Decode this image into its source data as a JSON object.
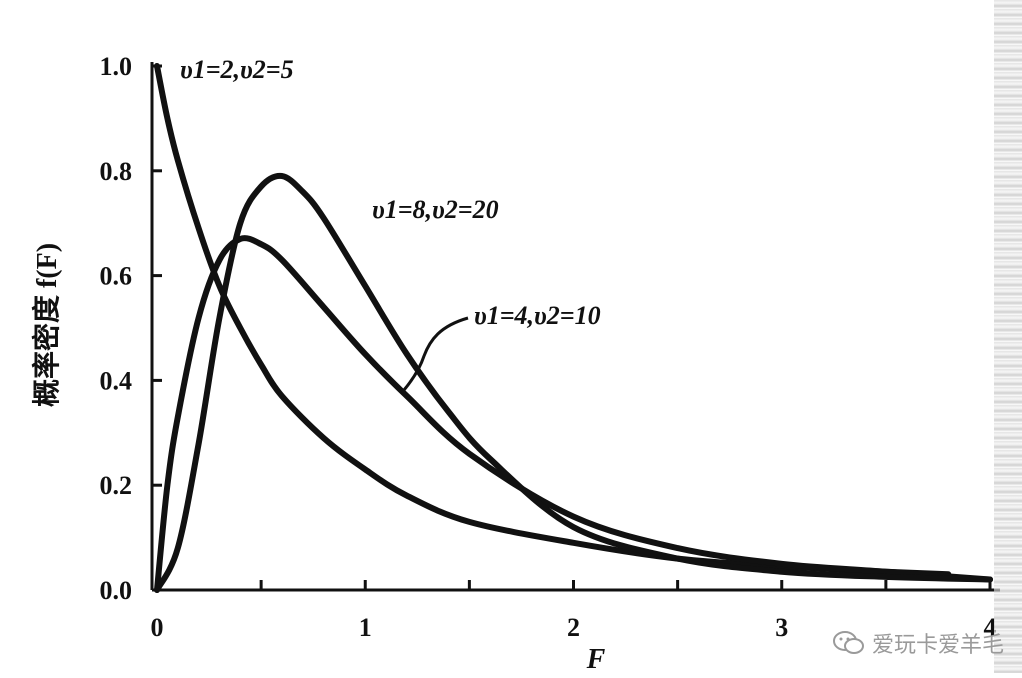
{
  "chart_data": {
    "type": "line",
    "title": "",
    "xlabel": "F",
    "ylabel": "概率密度 f(F)",
    "xlim": [
      0,
      4
    ],
    "ylim": [
      0,
      1.0
    ],
    "x_ticks": [
      "0",
      "1",
      "2",
      "3",
      "4"
    ],
    "y_ticks": [
      "0.0",
      "0.2",
      "0.4",
      "0.6",
      "0.8",
      "1.0"
    ],
    "grid": false,
    "series": [
      {
        "name": "υ1=2,υ2=5",
        "x": [
          0.0,
          0.05,
          0.1,
          0.2,
          0.3,
          0.4,
          0.5,
          0.6,
          0.8,
          1.0,
          1.2,
          1.5,
          2.0,
          2.5,
          3.0,
          3.5,
          3.8
        ],
        "y": [
          1.0,
          0.9,
          0.82,
          0.69,
          0.58,
          0.5,
          0.43,
          0.37,
          0.29,
          0.23,
          0.18,
          0.13,
          0.09,
          0.06,
          0.045,
          0.035,
          0.03
        ]
      },
      {
        "name": "υ1=4,υ2=10",
        "x": [
          0.0,
          0.05,
          0.1,
          0.2,
          0.3,
          0.4,
          0.5,
          0.6,
          0.8,
          1.0,
          1.2,
          1.5,
          2.0,
          2.5,
          3.0,
          3.5,
          4.0
        ],
        "y": [
          0.0,
          0.2,
          0.33,
          0.52,
          0.63,
          0.67,
          0.66,
          0.63,
          0.54,
          0.45,
          0.37,
          0.26,
          0.14,
          0.08,
          0.05,
          0.035,
          0.02
        ]
      },
      {
        "name": "υ1=8,υ2=20",
        "x": [
          0.0,
          0.1,
          0.2,
          0.3,
          0.4,
          0.5,
          0.6,
          0.7,
          0.8,
          1.0,
          1.2,
          1.4,
          1.6,
          2.0,
          2.5,
          3.0,
          3.5,
          4.0
        ],
        "y": [
          0.0,
          0.08,
          0.28,
          0.52,
          0.7,
          0.77,
          0.79,
          0.76,
          0.71,
          0.58,
          0.45,
          0.34,
          0.25,
          0.12,
          0.06,
          0.035,
          0.025,
          0.02
        ]
      }
    ],
    "legend": "inline labels"
  },
  "watermark": {
    "text": "爱玩卡爱羊毛",
    "icon": "wechat-icon"
  },
  "colors": {
    "line": "#111111",
    "watermark": "#9a9a9a"
  }
}
